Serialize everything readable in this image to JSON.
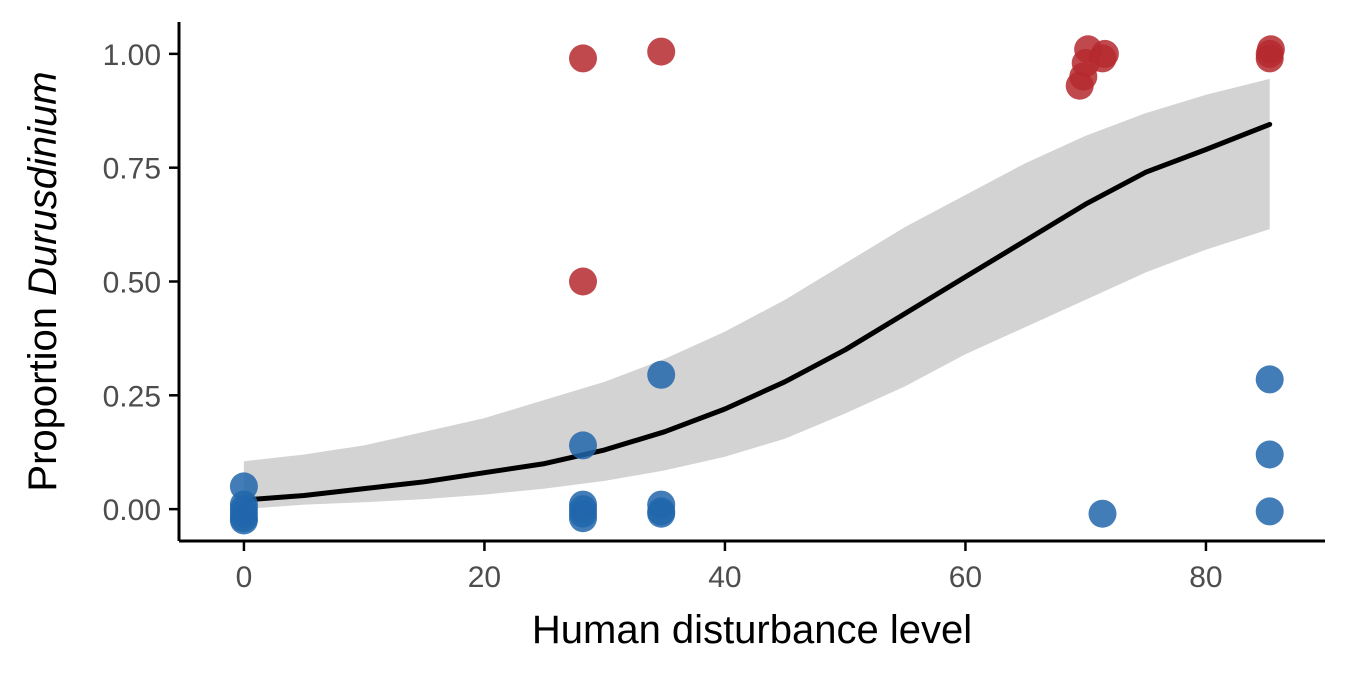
{
  "chart_data": {
    "type": "scatter",
    "xlabel": "Human disturbance level",
    "ylabel": "Proportion Durusdinium",
    "ylabel_parts": {
      "plain": "Proportion ",
      "italic": "Durusdinium"
    },
    "xlim": [
      -5.4,
      89.9
    ],
    "ylim": [
      -0.07,
      1.07
    ],
    "xticks": [
      0,
      20,
      40,
      60,
      80
    ],
    "xtick_labels": [
      "0",
      "20",
      "40",
      "60",
      "80"
    ],
    "yticks": [
      0,
      0.25,
      0.5,
      0.75,
      1.0
    ],
    "ytick_labels": [
      "0.00",
      "0.25",
      "0.50",
      "0.75",
      "1.00"
    ],
    "grid": false,
    "legend": "none",
    "colors": {
      "durusdinium_dominant": "#b5292f",
      "other_dominant": "#2166ac",
      "fit_line": "#000000",
      "confidence_band": "#d3d3d3"
    },
    "series": [
      {
        "kind": "points",
        "color": "#b5292f",
        "x": [
          28.2,
          34.7,
          69.5,
          69.8,
          70.0,
          70.2,
          71.4,
          71.6,
          85.3,
          85.3,
          85.4
        ],
        "y": [
          0.99,
          1.005,
          0.93,
          0.95,
          0.98,
          1.01,
          0.99,
          1.0,
          0.99,
          1.0,
          1.01
        ]
      },
      {
        "kind": "points",
        "color": "#2166ac",
        "x": [
          0,
          0,
          0,
          0,
          0,
          0,
          28.2,
          28.2,
          28.2,
          28.2,
          34.7,
          34.7,
          34.7,
          28.2,
          34.7,
          71.4,
          85.3,
          85.3,
          85.3
        ],
        "y": [
          0.05,
          0.01,
          0.0,
          -0.01,
          -0.02,
          -0.025,
          0.01,
          0.0,
          -0.01,
          -0.02,
          0.01,
          -0.005,
          -0.01,
          0.14,
          0.295,
          -0.01,
          0.285,
          0.12,
          -0.005
        ]
      },
      {
        "kind": "points",
        "color": "#b5292f",
        "x": [
          28.2
        ],
        "y": [
          0.5
        ]
      },
      {
        "kind": "line",
        "color": "#000000",
        "x": [
          0,
          5,
          10,
          15,
          20,
          25,
          30,
          35,
          40,
          45,
          50,
          55,
          60,
          65,
          70,
          75,
          80,
          85.3
        ],
        "y": [
          0.02,
          0.03,
          0.045,
          0.06,
          0.08,
          0.1,
          0.13,
          0.17,
          0.22,
          0.28,
          0.35,
          0.43,
          0.51,
          0.59,
          0.67,
          0.74,
          0.79,
          0.845
        ]
      },
      {
        "kind": "band",
        "color": "#d3d3d3",
        "x": [
          0,
          5,
          10,
          15,
          20,
          25,
          30,
          35,
          40,
          45,
          50,
          55,
          60,
          65,
          70,
          75,
          80,
          85.3
        ],
        "lower": [
          0.0,
          0.01,
          0.015,
          0.022,
          0.032,
          0.045,
          0.062,
          0.085,
          0.115,
          0.155,
          0.21,
          0.27,
          0.34,
          0.4,
          0.46,
          0.52,
          0.57,
          0.615
        ],
        "upper": [
          0.105,
          0.12,
          0.14,
          0.17,
          0.2,
          0.24,
          0.28,
          0.33,
          0.39,
          0.46,
          0.54,
          0.62,
          0.69,
          0.76,
          0.82,
          0.87,
          0.91,
          0.945
        ]
      }
    ]
  }
}
